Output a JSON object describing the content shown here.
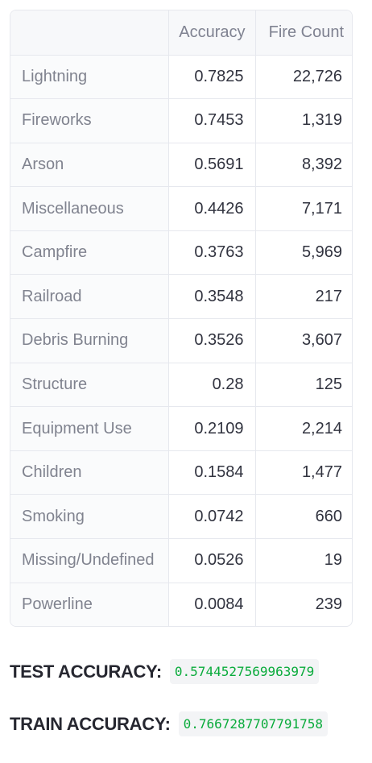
{
  "table": {
    "columns": [
      "",
      "Accuracy",
      "Fire Count"
    ],
    "rows": [
      {
        "cause": "Lightning",
        "accuracy": "0.7825",
        "fire_count": "22,726"
      },
      {
        "cause": "Fireworks",
        "accuracy": "0.7453",
        "fire_count": "1,319"
      },
      {
        "cause": "Arson",
        "accuracy": "0.5691",
        "fire_count": "8,392"
      },
      {
        "cause": "Miscellaneous",
        "accuracy": "0.4426",
        "fire_count": "7,171"
      },
      {
        "cause": "Campfire",
        "accuracy": "0.3763",
        "fire_count": "5,969"
      },
      {
        "cause": "Railroad",
        "accuracy": "0.3548",
        "fire_count": "217"
      },
      {
        "cause": "Debris Burning",
        "accuracy": "0.3526",
        "fire_count": "3,607"
      },
      {
        "cause": "Structure",
        "accuracy": "0.28",
        "fire_count": "125"
      },
      {
        "cause": "Equipment Use",
        "accuracy": "0.2109",
        "fire_count": "2,214"
      },
      {
        "cause": "Children",
        "accuracy": "0.1584",
        "fire_count": "1,477"
      },
      {
        "cause": "Smoking",
        "accuracy": "0.0742",
        "fire_count": "660"
      },
      {
        "cause": "Missing/Undefined",
        "accuracy": "0.0526",
        "fire_count": "19"
      },
      {
        "cause": "Powerline",
        "accuracy": "0.0084",
        "fire_count": "239"
      }
    ]
  },
  "metrics": {
    "test": {
      "label": "TEST ACCURACY:",
      "value": "0.5744527569963979"
    },
    "train": {
      "label": "TRAIN ACCURACY:",
      "value": "0.7667287707791758"
    }
  },
  "colors": {
    "value_text": "#09ab3b",
    "value_bg": "#f3f4f6",
    "border": "#e6e8ee"
  }
}
